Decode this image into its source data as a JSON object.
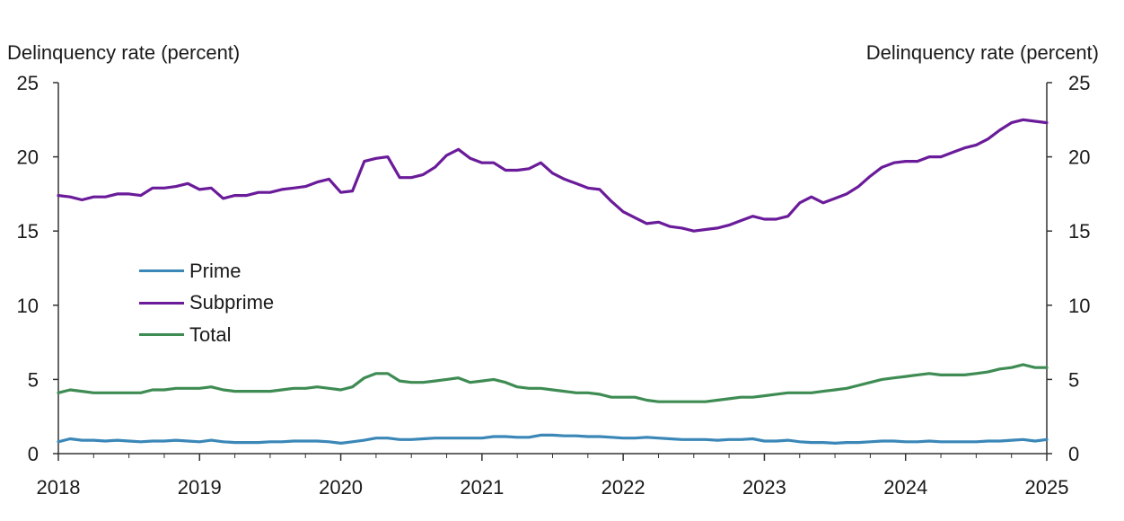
{
  "chart_data": {
    "type": "line",
    "title": "",
    "ylabel_left": "Delinquency rate (percent)",
    "ylabel_right": "Delinquency rate (percent)",
    "xlabel": "",
    "ylim": [
      0,
      25
    ],
    "y_ticks": [
      "0",
      "5",
      "10",
      "15",
      "20",
      "25"
    ],
    "x_ticks": [
      "2018",
      "2019",
      "2020",
      "2021",
      "2022",
      "2023",
      "2024",
      "2025"
    ],
    "xlim": [
      2018,
      2025
    ],
    "grid": false,
    "legend_position": "left-middle",
    "series": [
      {
        "name": "Prime",
        "color": "#3a87b8",
        "x": [
          2018.0,
          2018.083,
          2018.167,
          2018.25,
          2018.333,
          2018.417,
          2018.5,
          2018.583,
          2018.667,
          2018.75,
          2018.833,
          2018.917,
          2019.0,
          2019.083,
          2019.167,
          2019.25,
          2019.333,
          2019.417,
          2019.5,
          2019.583,
          2019.667,
          2019.75,
          2019.833,
          2019.917,
          2020.0,
          2020.083,
          2020.167,
          2020.25,
          2020.333,
          2020.417,
          2020.5,
          2020.583,
          2020.667,
          2020.75,
          2020.833,
          2020.917,
          2021.0,
          2021.083,
          2021.167,
          2021.25,
          2021.333,
          2021.417,
          2021.5,
          2021.583,
          2021.667,
          2021.75,
          2021.833,
          2021.917,
          2022.0,
          2022.083,
          2022.167,
          2022.25,
          2022.333,
          2022.417,
          2022.5,
          2022.583,
          2022.667,
          2022.75,
          2022.833,
          2022.917,
          2023.0,
          2023.083,
          2023.167,
          2023.25,
          2023.333,
          2023.417,
          2023.5,
          2023.583,
          2023.667,
          2023.75,
          2023.833,
          2023.917,
          2024.0,
          2024.083,
          2024.167,
          2024.25,
          2024.333,
          2024.417,
          2024.5,
          2024.583,
          2024.667,
          2024.75,
          2024.833,
          2024.917,
          2025.0
        ],
        "values": [
          0.8,
          1.0,
          0.9,
          0.9,
          0.85,
          0.9,
          0.85,
          0.8,
          0.85,
          0.85,
          0.9,
          0.85,
          0.8,
          0.9,
          0.8,
          0.75,
          0.75,
          0.75,
          0.8,
          0.8,
          0.85,
          0.85,
          0.85,
          0.8,
          0.7,
          0.8,
          0.9,
          1.05,
          1.05,
          0.95,
          0.95,
          1.0,
          1.05,
          1.05,
          1.05,
          1.05,
          1.05,
          1.15,
          1.15,
          1.1,
          1.1,
          1.25,
          1.25,
          1.2,
          1.2,
          1.15,
          1.15,
          1.1,
          1.05,
          1.05,
          1.1,
          1.05,
          1.0,
          0.95,
          0.95,
          0.95,
          0.9,
          0.95,
          0.95,
          1.0,
          0.85,
          0.85,
          0.9,
          0.8,
          0.75,
          0.75,
          0.7,
          0.75,
          0.75,
          0.8,
          0.85,
          0.85,
          0.8,
          0.8,
          0.85,
          0.8,
          0.8,
          0.8,
          0.8,
          0.85,
          0.85,
          0.9,
          0.95,
          0.85,
          0.95
        ]
      },
      {
        "name": "Subprime",
        "color": "#6a1b9a",
        "x": [
          2018.0,
          2018.083,
          2018.167,
          2018.25,
          2018.333,
          2018.417,
          2018.5,
          2018.583,
          2018.667,
          2018.75,
          2018.833,
          2018.917,
          2019.0,
          2019.083,
          2019.167,
          2019.25,
          2019.333,
          2019.417,
          2019.5,
          2019.583,
          2019.667,
          2019.75,
          2019.833,
          2019.917,
          2020.0,
          2020.083,
          2020.167,
          2020.25,
          2020.333,
          2020.417,
          2020.5,
          2020.583,
          2020.667,
          2020.75,
          2020.833,
          2020.917,
          2021.0,
          2021.083,
          2021.167,
          2021.25,
          2021.333,
          2021.417,
          2021.5,
          2021.583,
          2021.667,
          2021.75,
          2021.833,
          2021.917,
          2022.0,
          2022.083,
          2022.167,
          2022.25,
          2022.333,
          2022.417,
          2022.5,
          2022.583,
          2022.667,
          2022.75,
          2022.833,
          2022.917,
          2023.0,
          2023.083,
          2023.167,
          2023.25,
          2023.333,
          2023.417,
          2023.5,
          2023.583,
          2023.667,
          2023.75,
          2023.833,
          2023.917,
          2024.0,
          2024.083,
          2024.167,
          2024.25,
          2024.333,
          2024.417,
          2024.5,
          2024.583,
          2024.667,
          2024.75,
          2024.833,
          2024.917,
          2025.0
        ],
        "values": [
          17.4,
          17.3,
          17.1,
          17.3,
          17.3,
          17.5,
          17.5,
          17.4,
          17.9,
          17.9,
          18.0,
          18.2,
          17.8,
          17.9,
          17.2,
          17.4,
          17.4,
          17.6,
          17.6,
          17.8,
          17.9,
          18.0,
          18.3,
          18.5,
          17.6,
          17.7,
          19.7,
          19.9,
          20.0,
          18.6,
          18.6,
          18.8,
          19.3,
          20.1,
          20.5,
          19.9,
          19.6,
          19.6,
          19.1,
          19.1,
          19.2,
          19.6,
          18.9,
          18.5,
          18.2,
          17.9,
          17.8,
          17.0,
          16.3,
          15.9,
          15.5,
          15.6,
          15.3,
          15.2,
          15.0,
          15.1,
          15.2,
          15.4,
          15.7,
          16.0,
          15.8,
          15.8,
          16.0,
          16.9,
          17.3,
          16.9,
          17.2,
          17.5,
          18.0,
          18.7,
          19.3,
          19.6,
          19.7,
          19.7,
          20.0,
          20.0,
          20.3,
          20.6,
          20.8,
          21.2,
          21.8,
          22.3,
          22.5,
          22.4,
          22.3
        ]
      },
      {
        "name": "Total",
        "color": "#3e8c53",
        "x": [
          2018.0,
          2018.083,
          2018.167,
          2018.25,
          2018.333,
          2018.417,
          2018.5,
          2018.583,
          2018.667,
          2018.75,
          2018.833,
          2018.917,
          2019.0,
          2019.083,
          2019.167,
          2019.25,
          2019.333,
          2019.417,
          2019.5,
          2019.583,
          2019.667,
          2019.75,
          2019.833,
          2019.917,
          2020.0,
          2020.083,
          2020.167,
          2020.25,
          2020.333,
          2020.417,
          2020.5,
          2020.583,
          2020.667,
          2020.75,
          2020.833,
          2020.917,
          2021.0,
          2021.083,
          2021.167,
          2021.25,
          2021.333,
          2021.417,
          2021.5,
          2021.583,
          2021.667,
          2021.75,
          2021.833,
          2021.917,
          2022.0,
          2022.083,
          2022.167,
          2022.25,
          2022.333,
          2022.417,
          2022.5,
          2022.583,
          2022.667,
          2022.75,
          2022.833,
          2022.917,
          2023.0,
          2023.083,
          2023.167,
          2023.25,
          2023.333,
          2023.417,
          2023.5,
          2023.583,
          2023.667,
          2023.75,
          2023.833,
          2023.917,
          2024.0,
          2024.083,
          2024.167,
          2024.25,
          2024.333,
          2024.417,
          2024.5,
          2024.583,
          2024.667,
          2024.75,
          2024.833,
          2024.917,
          2025.0
        ],
        "values": [
          4.1,
          4.3,
          4.2,
          4.1,
          4.1,
          4.1,
          4.1,
          4.1,
          4.3,
          4.3,
          4.4,
          4.4,
          4.4,
          4.5,
          4.3,
          4.2,
          4.2,
          4.2,
          4.2,
          4.3,
          4.4,
          4.4,
          4.5,
          4.4,
          4.3,
          4.5,
          5.1,
          5.4,
          5.4,
          4.9,
          4.8,
          4.8,
          4.9,
          5.0,
          5.1,
          4.8,
          4.9,
          5.0,
          4.8,
          4.5,
          4.4,
          4.4,
          4.3,
          4.2,
          4.1,
          4.1,
          4.0,
          3.8,
          3.8,
          3.8,
          3.6,
          3.5,
          3.5,
          3.5,
          3.5,
          3.5,
          3.6,
          3.7,
          3.8,
          3.8,
          3.9,
          4.0,
          4.1,
          4.1,
          4.1,
          4.2,
          4.3,
          4.4,
          4.6,
          4.8,
          5.0,
          5.1,
          5.2,
          5.3,
          5.4,
          5.3,
          5.3,
          5.3,
          5.4,
          5.5,
          5.7,
          5.8,
          6.0,
          5.8,
          5.8
        ]
      }
    ]
  }
}
